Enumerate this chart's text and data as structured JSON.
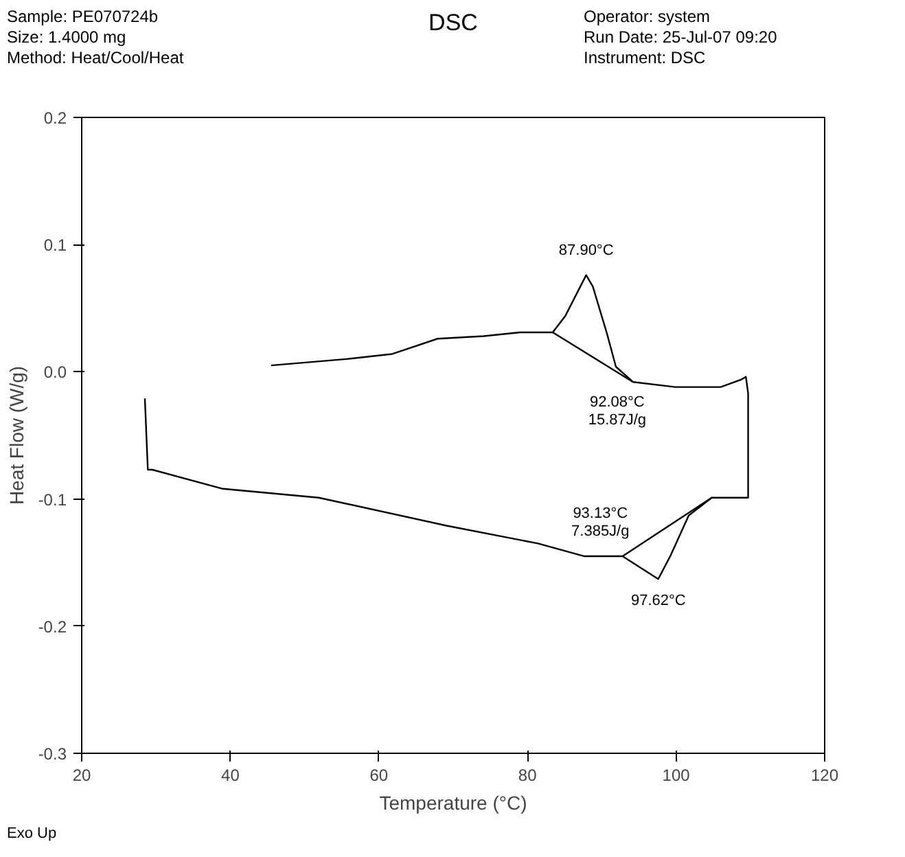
{
  "chart_data": {
    "type": "line",
    "title": "DSC",
    "xlabel": "Temperature (°C)",
    "ylabel": "Heat Flow (W/g)",
    "annotations": [
      "Sample: PE070724b",
      "Size:   1.4000 mg",
      "Method: Heat/Cool/Heat",
      "Operator: system",
      "Run Date: 25-Jul-07 09:20",
      "Instrument: DSC",
      "Exo Up",
      {
        "text": "87.90°C",
        "x": 87.9,
        "y": 0.076
      },
      {
        "text": "92.08°C\n15.87J/g",
        "x": 92.08,
        "y": 0.004
      },
      {
        "text": "93.13°C\n7.385J/g",
        "x": 93.13,
        "y": -0.145
      },
      {
        "text": "97.62°C",
        "x": 97.62,
        "y": -0.163
      }
    ],
    "xlim": [
      20,
      120
    ],
    "xticks": [
      20,
      40,
      60,
      80,
      100,
      120
    ],
    "ylim": [
      -0.3,
      0.2
    ],
    "yticks": [
      {
        "value": -0.3,
        "label": "-0.3"
      },
      {
        "value": -0.2,
        "label": "-0.2"
      },
      {
        "value": -0.1,
        "label": "-0.1"
      },
      {
        "value": 0,
        "label": "0.0"
      },
      {
        "value": 0.1,
        "label": "0.1"
      },
      {
        "value": 0.2,
        "label": "0.2"
      }
    ],
    "grid": false,
    "marker": "none",
    "line_style": "solid",
    "series": [
      {
        "color": "#000000",
        "x": [
          45.5,
          55.6,
          61.8,
          67.9,
          74.1,
          79.0,
          83.4,
          85.1,
          87.9,
          88.8,
          90.7,
          91.9,
          94.2,
          99.9,
          106.0,
          108.8,
          109.4,
          109.7,
          109.7,
          104.8,
          101.7,
          99.3,
          97.6,
          92.8,
          87.6,
          81.4,
          69.1,
          51.9,
          39.0,
          29.5,
          28.9,
          28.5
        ],
        "values": [
          0.005,
          0.01,
          0.014,
          0.026,
          0.028,
          0.031,
          0.031,
          0.044,
          0.076,
          0.067,
          0.03,
          0.004,
          -0.008,
          -0.012,
          -0.012,
          -0.006,
          -0.004,
          -0.017,
          -0.099,
          -0.099,
          -0.113,
          -0.144,
          -0.163,
          -0.145,
          -0.145,
          -0.135,
          -0.121,
          -0.099,
          -0.092,
          -0.077,
          -0.077,
          -0.021
        ]
      },
      {
        "color": "#000000",
        "x": [
          83.4,
          94.2
        ],
        "values": [
          0.031,
          -0.008
        ]
      },
      {
        "color": "#000000",
        "x": [
          92.8,
          104.8
        ],
        "values": [
          -0.145,
          -0.099
        ]
      }
    ]
  }
}
